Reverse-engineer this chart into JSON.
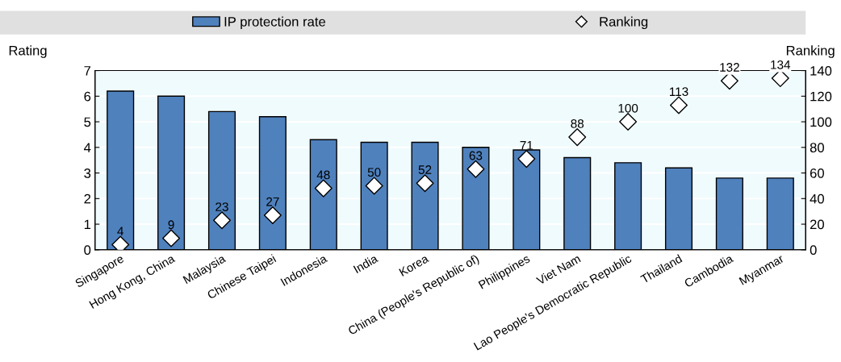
{
  "chart_data": {
    "type": "bar",
    "categories": [
      "Singapore",
      "Hong Kong, China",
      "Malaysia",
      "Chinese Taipei",
      "Indonesia",
      "India",
      "Korea",
      "China (People's Republic of)",
      "Philippines",
      "Viet Nam",
      "Lao People's Democratic Republic",
      "Thailand",
      "Cambodia",
      "Myanmar"
    ],
    "series": [
      {
        "name": "IP protection rate",
        "type": "bar",
        "color": "#4f81bd",
        "values": [
          6.2,
          6.0,
          5.4,
          5.2,
          4.3,
          4.2,
          4.2,
          4.0,
          3.9,
          3.6,
          3.4,
          3.2,
          2.8,
          2.8
        ]
      },
      {
        "name": "Ranking",
        "type": "scatter",
        "axis": "y2",
        "marker": "diamond",
        "color": "#ffffff",
        "values": [
          4,
          9,
          23,
          27,
          48,
          50,
          52,
          63,
          71,
          88,
          100,
          113,
          132,
          134
        ],
        "value_labels": [
          "4",
          "9",
          "23",
          "27",
          "48",
          "50",
          "52",
          "63",
          "71",
          "88",
          "100",
          "113",
          "132",
          "134"
        ]
      }
    ],
    "ylabel": "Rating",
    "y2label": "Ranking",
    "ylim": [
      0,
      7
    ],
    "yticks": [
      0,
      1,
      2,
      3,
      4,
      5,
      6,
      7
    ],
    "y2lim": [
      0,
      140
    ],
    "y2ticks": [
      0,
      20,
      40,
      60,
      80,
      100,
      120,
      140
    ],
    "grid": "y",
    "legend": "top"
  }
}
